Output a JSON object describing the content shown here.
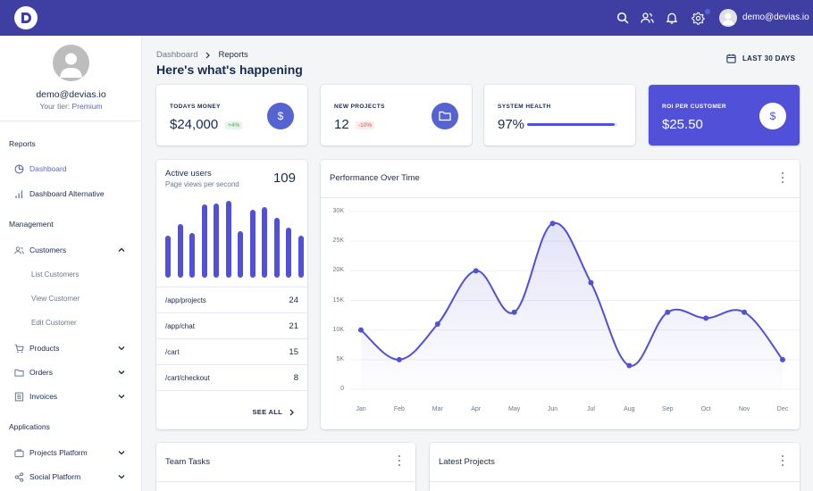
{
  "app": {
    "user_email": "demo@devias.io"
  },
  "topbar": {
    "icons": [
      "search-icon",
      "users-icon",
      "bell-icon",
      "settings-icon"
    ]
  },
  "sidebar": {
    "profile": {
      "email": "demo@devias.io",
      "tier_prefix": "Your tier: ",
      "tier": "Premium"
    },
    "sections": [
      "Reports",
      "Management",
      "Applications"
    ],
    "reports": [
      {
        "label": "Dashboard",
        "icon": "pie-chart-icon",
        "active": true
      },
      {
        "label": "Dashboard Alternative",
        "icon": "bar-chart-icon"
      }
    ],
    "management": [
      {
        "label": "Customers",
        "icon": "users-icon",
        "expanded": true,
        "children": [
          "List Customers",
          "View Customer",
          "Edit Customer"
        ]
      },
      {
        "label": "Products",
        "icon": "cart-icon"
      },
      {
        "label": "Orders",
        "icon": "folder-icon"
      },
      {
        "label": "Invoices",
        "icon": "receipt-icon"
      }
    ],
    "applications": [
      {
        "label": "Projects Platform",
        "icon": "briefcase-icon"
      },
      {
        "label": "Social Platform",
        "icon": "share-icon"
      }
    ]
  },
  "header": {
    "breadcrumb": [
      "Dashboard",
      "Reports"
    ],
    "title": "Here's what's happening",
    "range_label": "LAST 30 DAYS"
  },
  "kpis": [
    {
      "label": "TODAYS MONEY",
      "value": "$24,000",
      "badge": "+4%",
      "trend": "up",
      "icon": "dollar-icon"
    },
    {
      "label": "NEW PROJECTS",
      "value": "12",
      "badge": "-10%",
      "trend": "down",
      "icon": "folder-icon"
    },
    {
      "label": "SYSTEM HEALTH",
      "value": "97%",
      "progress": 0.97
    },
    {
      "label": "ROI PER CUSTOMER",
      "value": "$25.50",
      "icon": "dollar-icon",
      "highlight": true
    }
  ],
  "active_users": {
    "title": "Active users",
    "subtitle": "Page views per second",
    "count": "109",
    "bars": [
      0.55,
      0.7,
      0.58,
      0.95,
      0.97,
      1.0,
      0.6,
      0.88,
      0.92,
      0.78,
      0.65,
      0.55
    ],
    "pages": [
      {
        "path": "/app/projects",
        "count": "24"
      },
      {
        "path": "/app/chat",
        "count": "21"
      },
      {
        "path": "/cart",
        "count": "15"
      },
      {
        "path": "/cart/checkout",
        "count": "8"
      }
    ],
    "see_all": "SEE ALL"
  },
  "performance": {
    "title": "Performance Over Time"
  },
  "chart_data": {
    "type": "area",
    "title": "Performance Over Time",
    "categories": [
      "Jan",
      "Feb",
      "Mar",
      "Apr",
      "May",
      "Jun",
      "Jul",
      "Aug",
      "Sep",
      "Oct",
      "Nov",
      "Dec"
    ],
    "values": [
      10000,
      5000,
      11000,
      20000,
      13000,
      28000,
      18000,
      4000,
      13000,
      12000,
      13000,
      5000
    ],
    "y_ticks": [
      "0",
      "5K",
      "10K",
      "15K",
      "20K",
      "25K",
      "30K"
    ],
    "ylim": [
      0,
      30000
    ],
    "color": "#5050d8",
    "grid": true
  },
  "bottom": {
    "team_tasks": "Team Tasks",
    "latest_projects": "Latest Projects"
  }
}
